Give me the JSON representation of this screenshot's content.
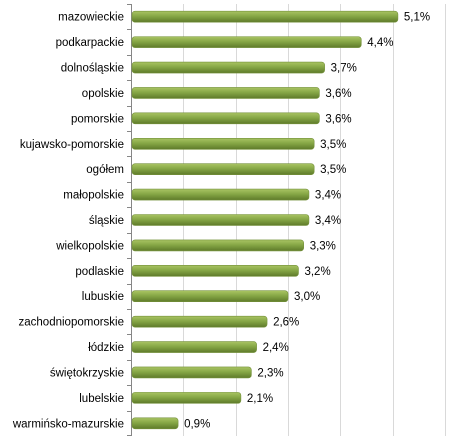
{
  "chart_data": {
    "type": "bar",
    "orientation": "horizontal",
    "title": "",
    "xlabel": "",
    "ylabel": "",
    "grid": true,
    "xlim": [
      0,
      6
    ],
    "bar_color": "#76923c",
    "bar_highlight_color": "#a5c05b",
    "categories": [
      "mazowieckie",
      "podkarpackie",
      "dolnośląskie",
      "opolskie",
      "pomorskie",
      "kujawsko-pomorskie",
      "ogółem",
      "małopolskie",
      "śląskie",
      "wielkopolskie",
      "podlaskie",
      "lubuskie",
      "zachodniopomorskie",
      "łódzkie",
      "świętokrzyskie",
      "lubelskie",
      "warmińsko-mazurskie"
    ],
    "values": [
      5.1,
      4.4,
      3.7,
      3.6,
      3.6,
      3.5,
      3.5,
      3.4,
      3.4,
      3.3,
      3.2,
      3.0,
      2.6,
      2.4,
      2.3,
      2.1,
      0.9
    ],
    "value_labels": [
      "5,1%",
      "4,4%",
      "3,7%",
      "3,6%",
      "3,6%",
      "3,5%",
      "3,5%",
      "3,4%",
      "3,4%",
      "3,3%",
      "3,2%",
      "3,0%",
      "2,6%",
      "2,4%",
      "2,3%",
      "2,1%",
      "0,9%"
    ]
  }
}
